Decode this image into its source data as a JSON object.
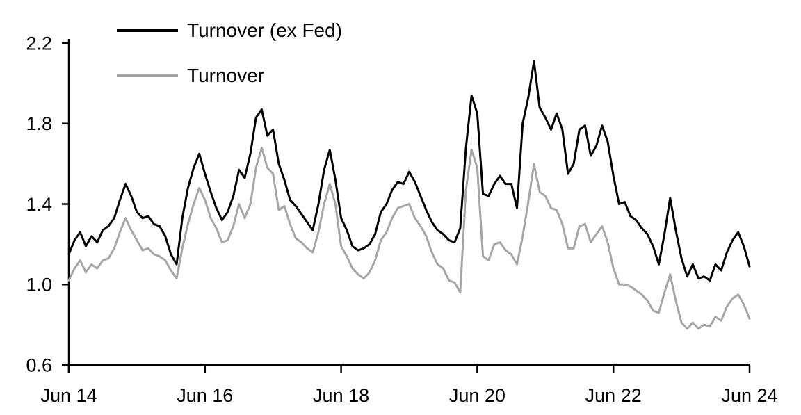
{
  "chart_data": {
    "type": "line",
    "title": "",
    "xlabel": "",
    "ylabel": "",
    "grid": false,
    "legend_position": "top-left-inside",
    "ylim": [
      0.6,
      2.2
    ],
    "y_ticks": [
      0.6,
      1.0,
      1.4,
      1.8,
      2.2
    ],
    "y_tick_labels": [
      "0.6",
      "1.0",
      "1.4",
      "1.8",
      "2.2"
    ],
    "x_tick_indices": [
      0,
      24,
      48,
      72,
      96,
      120
    ],
    "x_tick_labels": [
      "Jun 14",
      "Jun 16",
      "Jun 18",
      "Jun 20",
      "Jun 22",
      "Jun 24"
    ],
    "x": [
      "2014-06",
      "2014-07",
      "2014-08",
      "2014-09",
      "2014-10",
      "2014-11",
      "2014-12",
      "2015-01",
      "2015-02",
      "2015-03",
      "2015-04",
      "2015-05",
      "2015-06",
      "2015-07",
      "2015-08",
      "2015-09",
      "2015-10",
      "2015-11",
      "2015-12",
      "2016-01",
      "2016-02",
      "2016-03",
      "2016-04",
      "2016-05",
      "2016-06",
      "2016-07",
      "2016-08",
      "2016-09",
      "2016-10",
      "2016-11",
      "2016-12",
      "2017-01",
      "2017-02",
      "2017-03",
      "2017-04",
      "2017-05",
      "2017-06",
      "2017-07",
      "2017-08",
      "2017-09",
      "2017-10",
      "2017-11",
      "2017-12",
      "2018-01",
      "2018-02",
      "2018-03",
      "2018-04",
      "2018-05",
      "2018-06",
      "2018-07",
      "2018-08",
      "2018-09",
      "2018-10",
      "2018-11",
      "2018-12",
      "2019-01",
      "2019-02",
      "2019-03",
      "2019-04",
      "2019-05",
      "2019-06",
      "2019-07",
      "2019-08",
      "2019-09",
      "2019-10",
      "2019-11",
      "2019-12",
      "2020-01",
      "2020-02",
      "2020-03",
      "2020-04",
      "2020-05",
      "2020-06",
      "2020-07",
      "2020-08",
      "2020-09",
      "2020-10",
      "2020-11",
      "2020-12",
      "2021-01",
      "2021-02",
      "2021-03",
      "2021-04",
      "2021-05",
      "2021-06",
      "2021-07",
      "2021-08",
      "2021-09",
      "2021-10",
      "2021-11",
      "2021-12",
      "2022-01",
      "2022-02",
      "2022-03",
      "2022-04",
      "2022-05",
      "2022-06",
      "2022-07",
      "2022-08",
      "2022-09",
      "2022-10",
      "2022-11",
      "2022-12",
      "2023-01",
      "2023-02",
      "2023-03",
      "2023-04",
      "2023-05",
      "2023-06",
      "2023-07",
      "2023-08",
      "2023-09",
      "2023-10",
      "2023-11",
      "2023-12",
      "2024-01",
      "2024-02",
      "2024-03",
      "2024-04",
      "2024-05",
      "2024-06"
    ],
    "series": [
      {
        "name": "Turnover (ex Fed)",
        "color": "#000000",
        "line_width": 3,
        "values": [
          1.15,
          1.22,
          1.26,
          1.19,
          1.24,
          1.21,
          1.27,
          1.29,
          1.33,
          1.42,
          1.5,
          1.44,
          1.36,
          1.33,
          1.34,
          1.3,
          1.29,
          1.24,
          1.15,
          1.1,
          1.33,
          1.48,
          1.58,
          1.65,
          1.55,
          1.46,
          1.38,
          1.32,
          1.36,
          1.44,
          1.57,
          1.53,
          1.65,
          1.83,
          1.87,
          1.74,
          1.77,
          1.6,
          1.52,
          1.42,
          1.39,
          1.35,
          1.31,
          1.27,
          1.4,
          1.57,
          1.67,
          1.52,
          1.33,
          1.27,
          1.19,
          1.17,
          1.18,
          1.2,
          1.25,
          1.36,
          1.4,
          1.47,
          1.51,
          1.5,
          1.56,
          1.51,
          1.44,
          1.37,
          1.31,
          1.27,
          1.25,
          1.22,
          1.21,
          1.28,
          1.68,
          1.94,
          1.85,
          1.45,
          1.44,
          1.5,
          1.54,
          1.5,
          1.5,
          1.38,
          1.8,
          1.93,
          2.11,
          1.88,
          1.83,
          1.77,
          1.85,
          1.77,
          1.55,
          1.6,
          1.77,
          1.79,
          1.64,
          1.69,
          1.79,
          1.71,
          1.54,
          1.4,
          1.41,
          1.34,
          1.32,
          1.28,
          1.25,
          1.19,
          1.1,
          1.25,
          1.43,
          1.27,
          1.13,
          1.04,
          1.1,
          1.03,
          1.04,
          1.02,
          1.1,
          1.07,
          1.16,
          1.22,
          1.26,
          1.19,
          1.09
        ]
      },
      {
        "name": "Turnover",
        "color": "#a6a6a6",
        "line_width": 3,
        "values": [
          1.02,
          1.08,
          1.12,
          1.06,
          1.1,
          1.08,
          1.12,
          1.13,
          1.18,
          1.26,
          1.33,
          1.27,
          1.22,
          1.17,
          1.18,
          1.15,
          1.14,
          1.12,
          1.07,
          1.03,
          1.18,
          1.3,
          1.4,
          1.48,
          1.42,
          1.33,
          1.28,
          1.21,
          1.22,
          1.29,
          1.4,
          1.33,
          1.4,
          1.58,
          1.68,
          1.58,
          1.55,
          1.37,
          1.39,
          1.3,
          1.23,
          1.21,
          1.18,
          1.16,
          1.26,
          1.4,
          1.5,
          1.4,
          1.19,
          1.14,
          1.08,
          1.05,
          1.03,
          1.06,
          1.12,
          1.22,
          1.26,
          1.33,
          1.38,
          1.39,
          1.4,
          1.33,
          1.29,
          1.24,
          1.16,
          1.1,
          1.08,
          1.02,
          1.01,
          0.96,
          1.47,
          1.67,
          1.58,
          1.14,
          1.12,
          1.2,
          1.21,
          1.17,
          1.15,
          1.1,
          1.24,
          1.41,
          1.6,
          1.46,
          1.44,
          1.38,
          1.37,
          1.3,
          1.18,
          1.18,
          1.29,
          1.3,
          1.21,
          1.25,
          1.29,
          1.21,
          1.08,
          1.0,
          1.0,
          0.99,
          0.97,
          0.95,
          0.92,
          0.87,
          0.86,
          0.96,
          1.05,
          0.92,
          0.81,
          0.78,
          0.81,
          0.78,
          0.8,
          0.79,
          0.84,
          0.82,
          0.89,
          0.93,
          0.95,
          0.9,
          0.83
        ]
      }
    ]
  },
  "colors": {
    "background": "#ffffff",
    "axis": "#000000",
    "text": "#000000",
    "series_black": "#000000",
    "series_gray": "#a6a6a6"
  }
}
